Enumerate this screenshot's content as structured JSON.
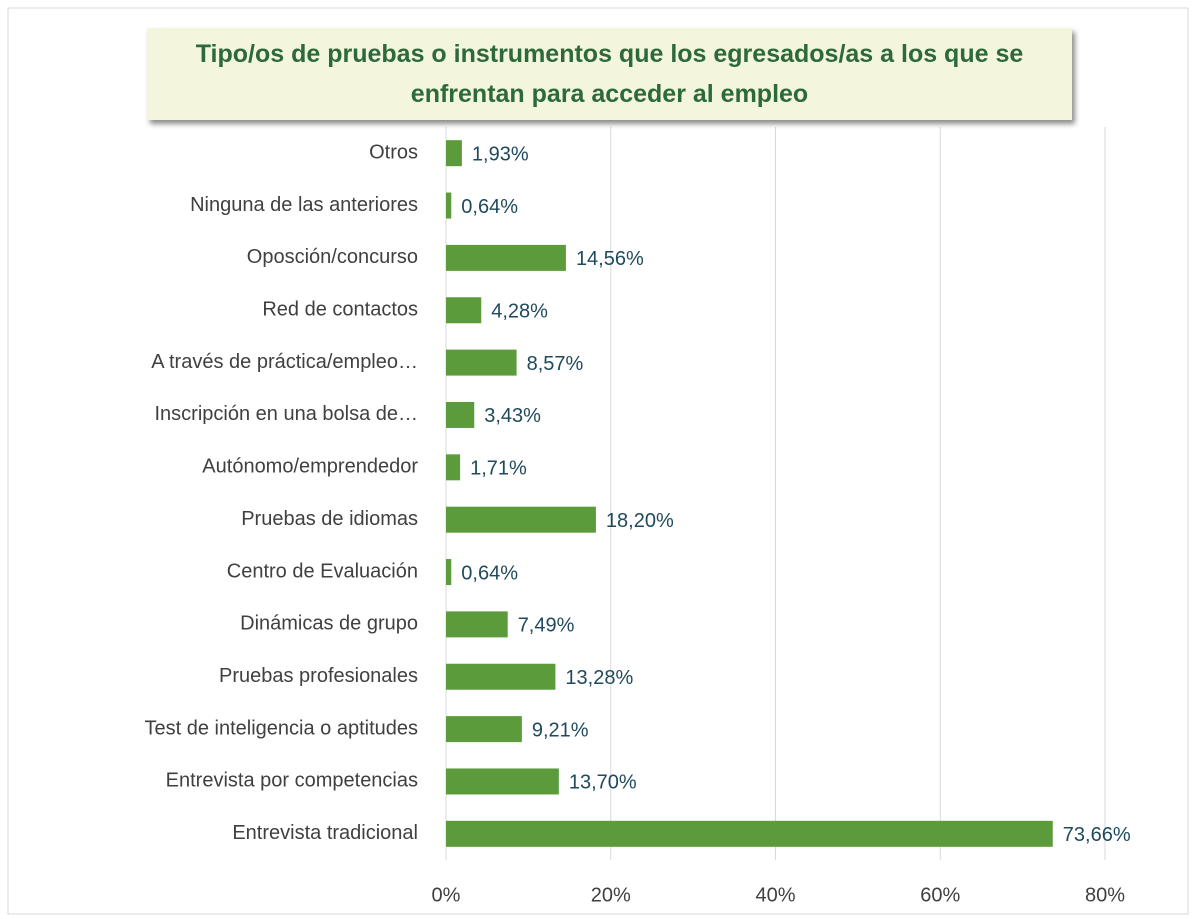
{
  "chart_data": {
    "type": "barh",
    "title": "Tipo/os de pruebas o instrumentos que los egresados/as  a los que se enfrentan para acceder al empleo",
    "categories": [
      "Otros",
      "Ninguna de las anteriores",
      "Oposción/concurso",
      "Red de contactos",
      "A través de práctica/empleo…",
      "Inscripción en una bolsa de…",
      "Autónomo/emprendedor",
      "Pruebas de idiomas",
      "Centro de Evaluación",
      "Dinámicas de grupo",
      "Pruebas profesionales",
      "Test de inteligencia o aptitudes",
      "Entrevista por competencias",
      "Entrevista tradicional"
    ],
    "values": [
      1.93,
      0.64,
      14.56,
      4.28,
      8.57,
      3.43,
      1.71,
      18.2,
      0.64,
      7.49,
      13.28,
      9.21,
      13.7,
      73.66
    ],
    "value_labels": [
      "1,93%",
      "0,64%",
      "14,56%",
      "4,28%",
      "8,57%",
      "3,43%",
      "1,71%",
      "18,20%",
      "0,64%",
      "7,49%",
      "13,28%",
      "9,21%",
      "13,70%",
      "73,66%"
    ],
    "color": "#5b9b3c",
    "xlim": [
      0,
      80
    ],
    "xticks": [
      {
        "value": 0,
        "label": "0%"
      },
      {
        "value": 20,
        "label": "20%"
      },
      {
        "value": 40,
        "label": "40%"
      },
      {
        "value": 60,
        "label": "60%"
      },
      {
        "value": 80,
        "label": "80%"
      }
    ],
    "grid": true
  }
}
